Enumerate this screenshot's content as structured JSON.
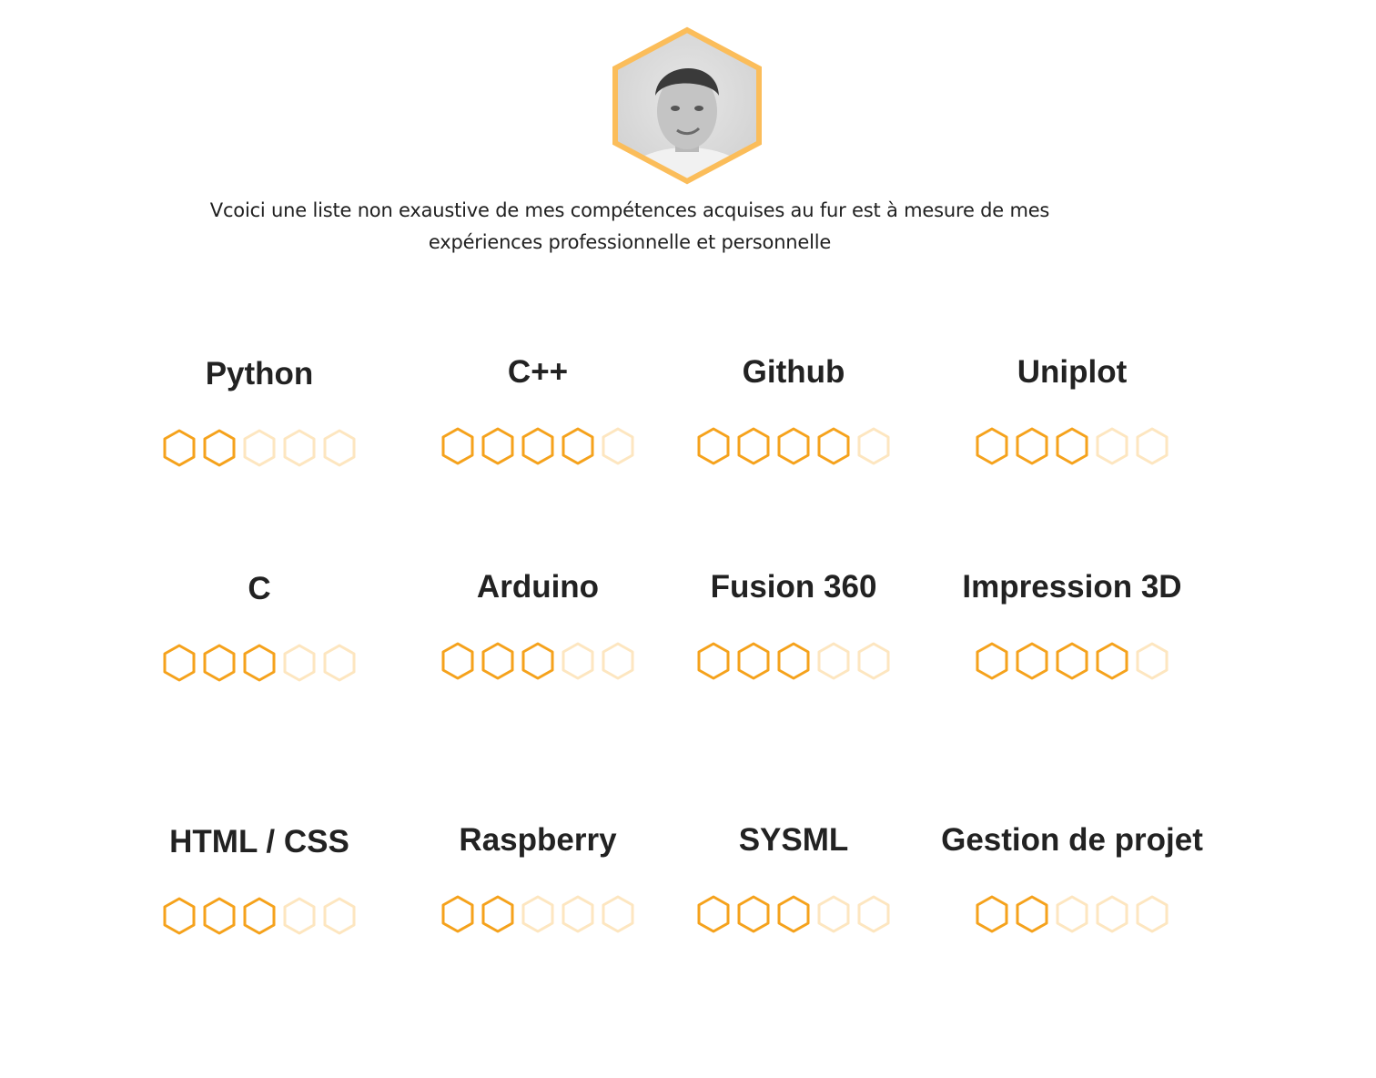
{
  "intro": {
    "line1": "Vcoici une liste non exaustive de mes compétences acquises au fur est  à mesure de mes",
    "line2": "expériences professionnelle et personnelle"
  },
  "colors": {
    "accent": "#f5a21c",
    "accent_light": "#fde6c0",
    "avatar_border": "#fbbd5a",
    "text": "#222222"
  },
  "rating_max": 5,
  "skills": [
    {
      "name": "Python",
      "level": 2
    },
    {
      "name": "C++",
      "level": 4
    },
    {
      "name": "Github",
      "level": 4
    },
    {
      "name": "Uniplot",
      "level": 3
    },
    {
      "name": "C",
      "level": 3
    },
    {
      "name": "Arduino",
      "level": 3
    },
    {
      "name": "Fusion 360",
      "level": 3
    },
    {
      "name": "Impression 3D",
      "level": 4
    },
    {
      "name": "HTML / CSS",
      "level": 3
    },
    {
      "name": "Raspberry",
      "level": 2
    },
    {
      "name": "SYSML",
      "level": 3
    },
    {
      "name": "Gestion de projet",
      "level": 2
    }
  ]
}
